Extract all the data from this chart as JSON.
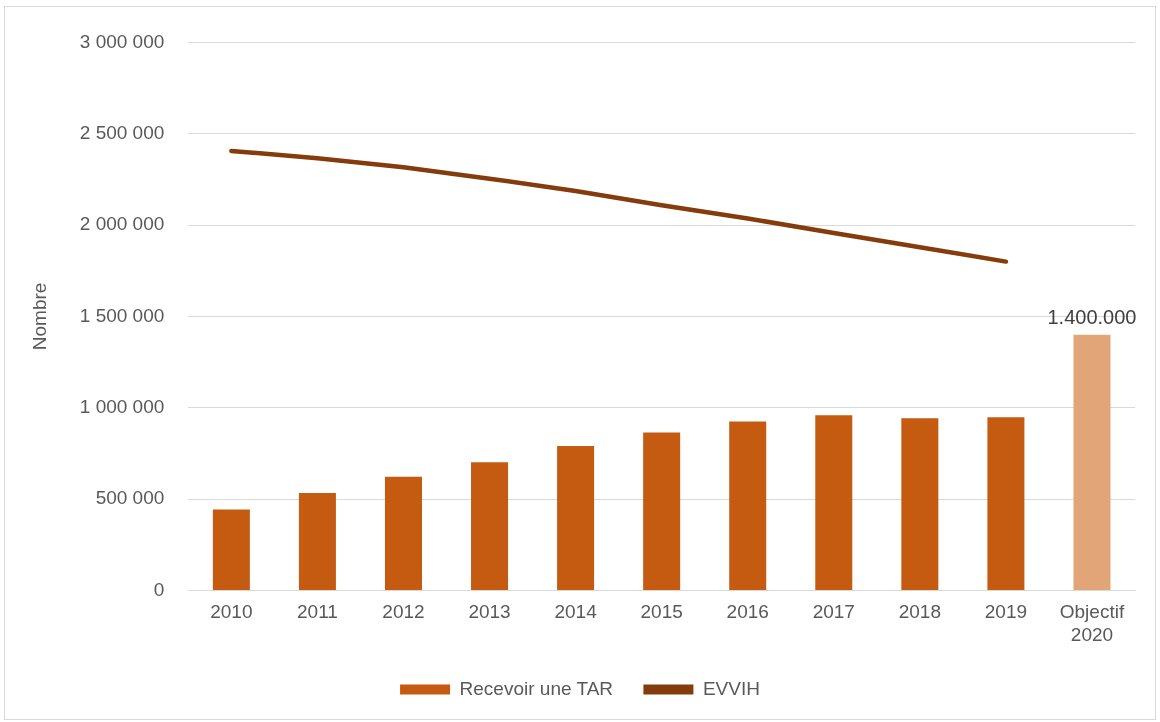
{
  "chart_data": {
    "type": "bar",
    "ylabel": "Nombre",
    "categories": [
      "2010",
      "2011",
      "2012",
      "2013",
      "2014",
      "2015",
      "2016",
      "2017",
      "2018",
      "2019",
      "Objectif 2020"
    ],
    "series": [
      {
        "name": "Recevoir une TAR",
        "color": "#c55a11",
        "colors": [
          "#c55a11",
          "#c55a11",
          "#c55a11",
          "#c55a11",
          "#c55a11",
          "#c55a11",
          "#c55a11",
          "#c55a11",
          "#c55a11",
          "#c55a11",
          "#e2a577"
        ],
        "values": [
          443000,
          533000,
          622000,
          701000,
          791000,
          864000,
          925000,
          959000,
          942000,
          948000,
          1400000
        ],
        "value_labels": [
          null,
          null,
          null,
          null,
          null,
          null,
          null,
          null,
          null,
          null,
          "1.400.000"
        ]
      },
      {
        "name": "EVVIH",
        "type": "line",
        "color": "#843c0c",
        "values": [
          2406000,
          2366000,
          2316000,
          2254000,
          2187000,
          2108000,
          2036000,
          1957000,
          1879000,
          1800000,
          null
        ]
      }
    ],
    "ylim": [
      0,
      3000000
    ],
    "yticks": [
      {
        "value": 0,
        "label": "0"
      },
      {
        "value": 500000,
        "label": "500 000"
      },
      {
        "value": 1000000,
        "label": "1 000 000"
      },
      {
        "value": 1500000,
        "label": "1 500 000"
      },
      {
        "value": 2000000,
        "label": "2 000 000"
      },
      {
        "value": 2500000,
        "label": "2 500 000"
      },
      {
        "value": 3000000,
        "label": "3 000 000"
      }
    ],
    "grid": "y",
    "legend": "bottom",
    "marker": "none",
    "line_style": "solid"
  }
}
